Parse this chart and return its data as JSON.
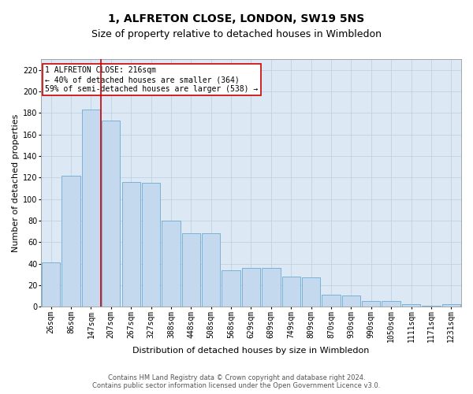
{
  "title": "1, ALFRETON CLOSE, LONDON, SW19 5NS",
  "subtitle": "Size of property relative to detached houses in Wimbledon",
  "xlabel": "Distribution of detached houses by size in Wimbledon",
  "ylabel": "Number of detached properties",
  "categories": [
    "26sqm",
    "86sqm",
    "147sqm",
    "207sqm",
    "267sqm",
    "327sqm",
    "388sqm",
    "448sqm",
    "508sqm",
    "568sqm",
    "629sqm",
    "689sqm",
    "749sqm",
    "809sqm",
    "870sqm",
    "930sqm",
    "990sqm",
    "1050sqm",
    "1111sqm",
    "1171sqm",
    "1231sqm"
  ],
  "values": [
    41,
    122,
    183,
    173,
    116,
    115,
    80,
    68,
    68,
    34,
    36,
    36,
    28,
    27,
    11,
    10,
    5,
    5,
    2,
    1,
    2
  ],
  "bar_color": "#c5d9ee",
  "bar_edge_color": "#6aaad4",
  "vline_x": 2.5,
  "vline_color": "#cc0000",
  "annotation_text": "1 ALFRETON CLOSE: 216sqm\n← 40% of detached houses are smaller (364)\n59% of semi-detached houses are larger (538) →",
  "annotation_box_color": "#ffffff",
  "annotation_box_edge": "#cc0000",
  "footer_line1": "Contains HM Land Registry data © Crown copyright and database right 2024.",
  "footer_line2": "Contains public sector information licensed under the Open Government Licence v3.0.",
  "plot_bg_color": "#dce9f5",
  "background_color": "#ffffff",
  "grid_color": "#b8cfe0",
  "ylim": [
    0,
    230
  ],
  "title_fontsize": 10,
  "subtitle_fontsize": 9,
  "axis_label_fontsize": 8,
  "tick_fontsize": 7,
  "annotation_fontsize": 7,
  "footer_fontsize": 6
}
